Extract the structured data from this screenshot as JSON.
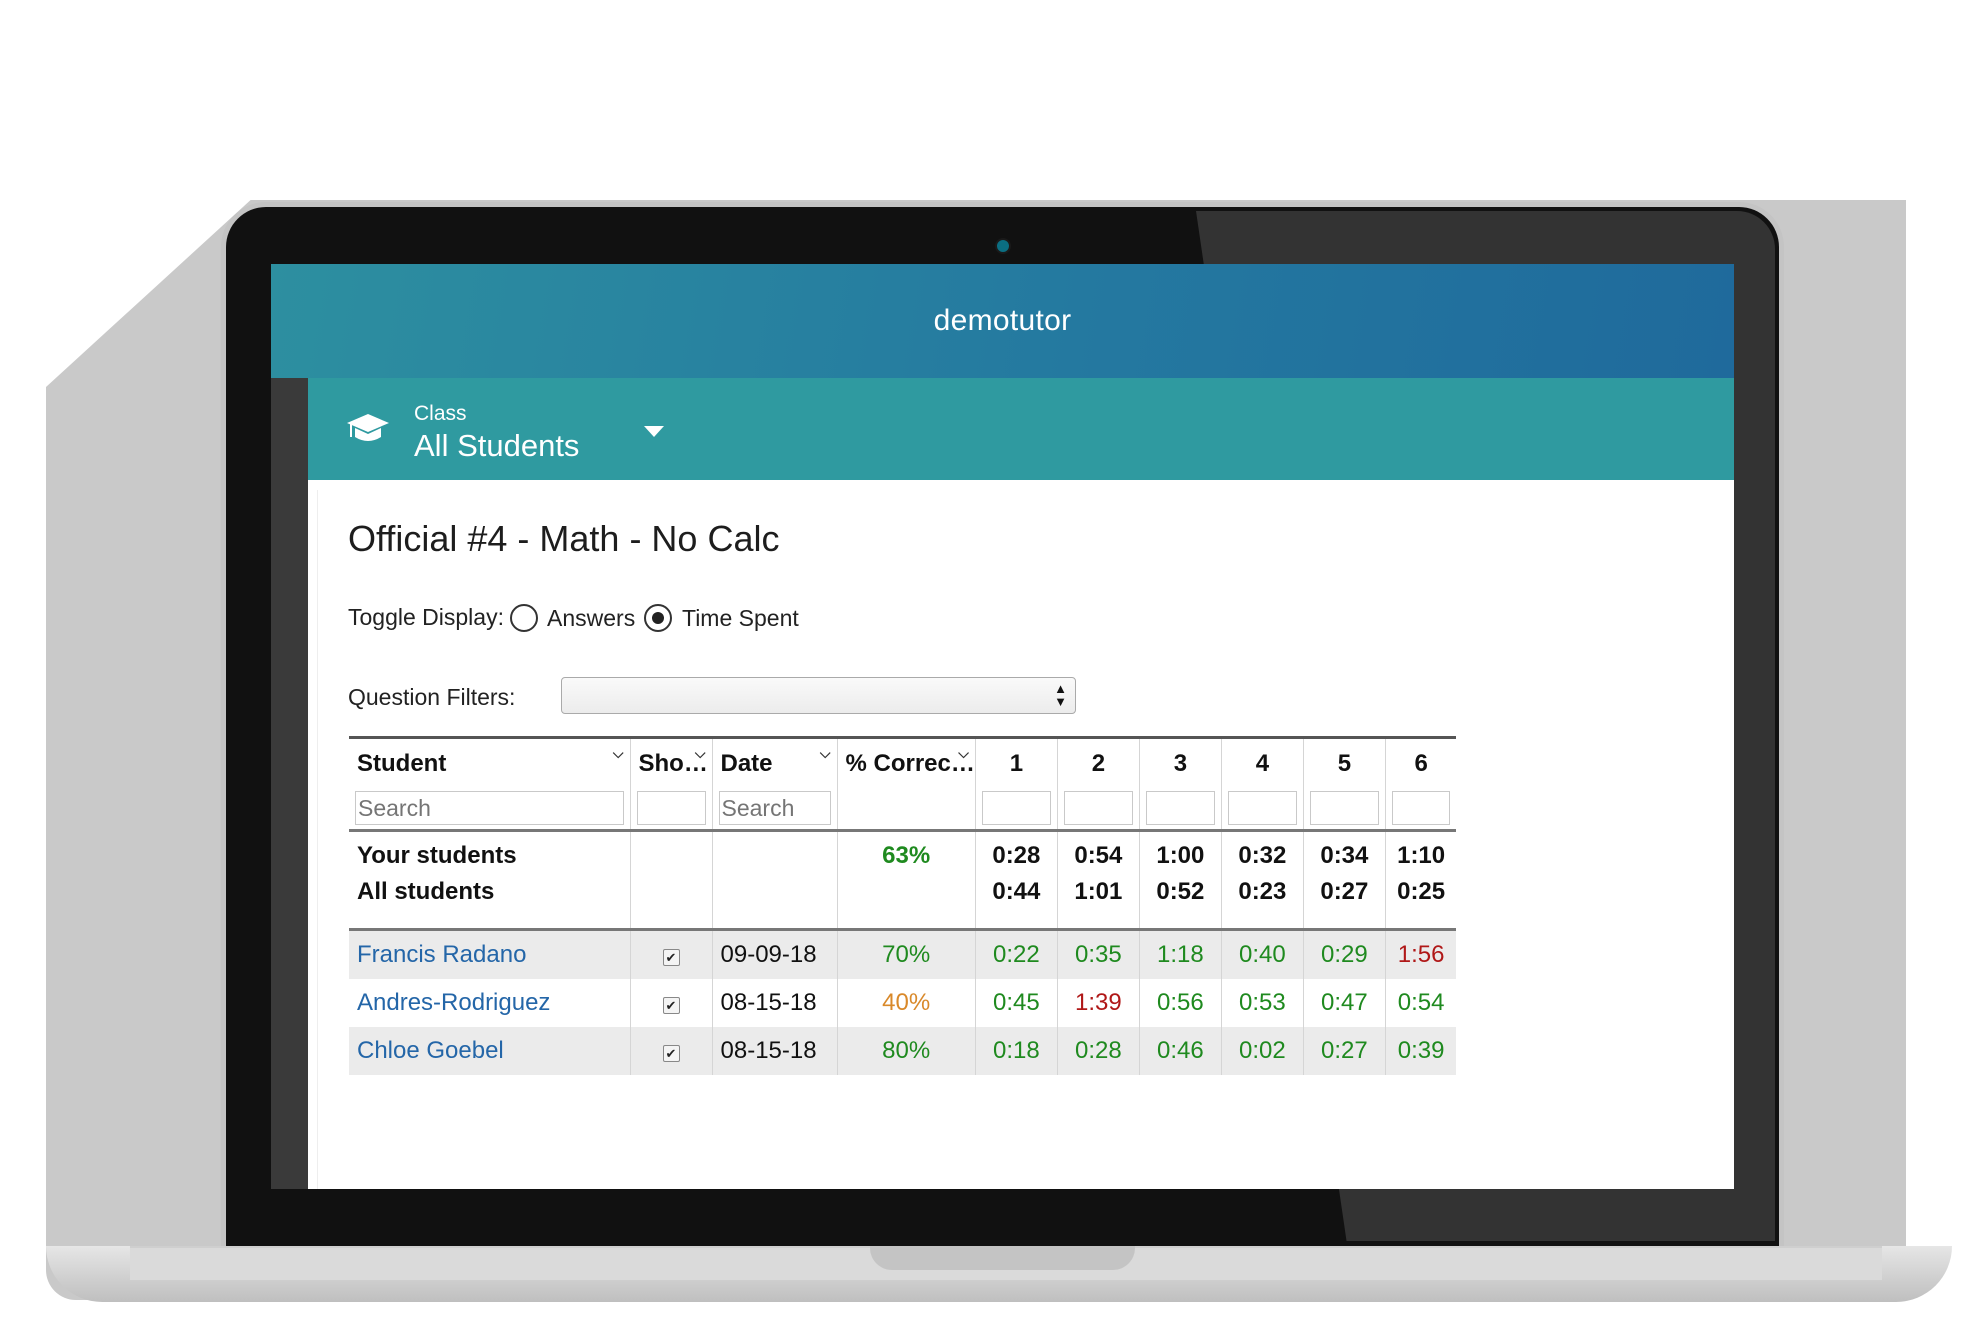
{
  "app": {
    "brand": "demotutor"
  },
  "class_selector": {
    "label": "Class",
    "value": "All Students"
  },
  "page_title": "Official #4 - Math - No Calc",
  "toggle_display": {
    "label": "Toggle Display:",
    "options": [
      {
        "label": "Answers",
        "selected": false
      },
      {
        "label": "Time Spent",
        "selected": true
      }
    ]
  },
  "question_filters": {
    "label": "Question Filters:",
    "value": ""
  },
  "table": {
    "columns": [
      "Student",
      "Sho…",
      "Date",
      "% Correc…",
      "1",
      "2",
      "3",
      "4",
      "5",
      "6"
    ],
    "search_placeholder": "Search",
    "summary": {
      "labels": [
        "Your students",
        "All students"
      ],
      "pct_correct": "63%",
      "your_times": [
        "0:28",
        "0:54",
        "1:00",
        "0:32",
        "0:34",
        "1:10"
      ],
      "all_times": [
        "0:44",
        "1:01",
        "0:52",
        "0:23",
        "0:27",
        "0:25"
      ]
    },
    "rows": [
      {
        "student": "Francis Radano",
        "show": true,
        "date": "09-09-18",
        "pct": "70%",
        "pct_status": "green",
        "times": [
          "0:22",
          "0:35",
          "1:18",
          "0:40",
          "0:29",
          "1:56"
        ],
        "time_status": [
          "green",
          "green",
          "green",
          "green",
          "green",
          "red"
        ]
      },
      {
        "student": "Andres-Rodriguez",
        "show": true,
        "date": "08-15-18",
        "pct": "40%",
        "pct_status": "orange",
        "times": [
          "0:45",
          "1:39",
          "0:56",
          "0:53",
          "0:47",
          "0:54"
        ],
        "time_status": [
          "green",
          "red",
          "green",
          "green",
          "green",
          "green"
        ]
      },
      {
        "student": "Chloe Goebel",
        "show": true,
        "date": "08-15-18",
        "pct": "80%",
        "pct_status": "green",
        "times": [
          "0:18",
          "0:28",
          "0:46",
          "0:02",
          "0:27",
          "0:39"
        ],
        "time_status": [
          "green",
          "green",
          "green",
          "green",
          "green",
          "green"
        ]
      }
    ]
  },
  "colors": {
    "header": "#2479a0",
    "class_bar": "#2f9aa0",
    "link": "#2466a8",
    "good": "#1f8a1f",
    "warn": "#d9892a",
    "bad": "#b01818"
  },
  "icons": {
    "class_icon": "graduation-cap-icon",
    "dropdown": "caret-down-icon"
  }
}
